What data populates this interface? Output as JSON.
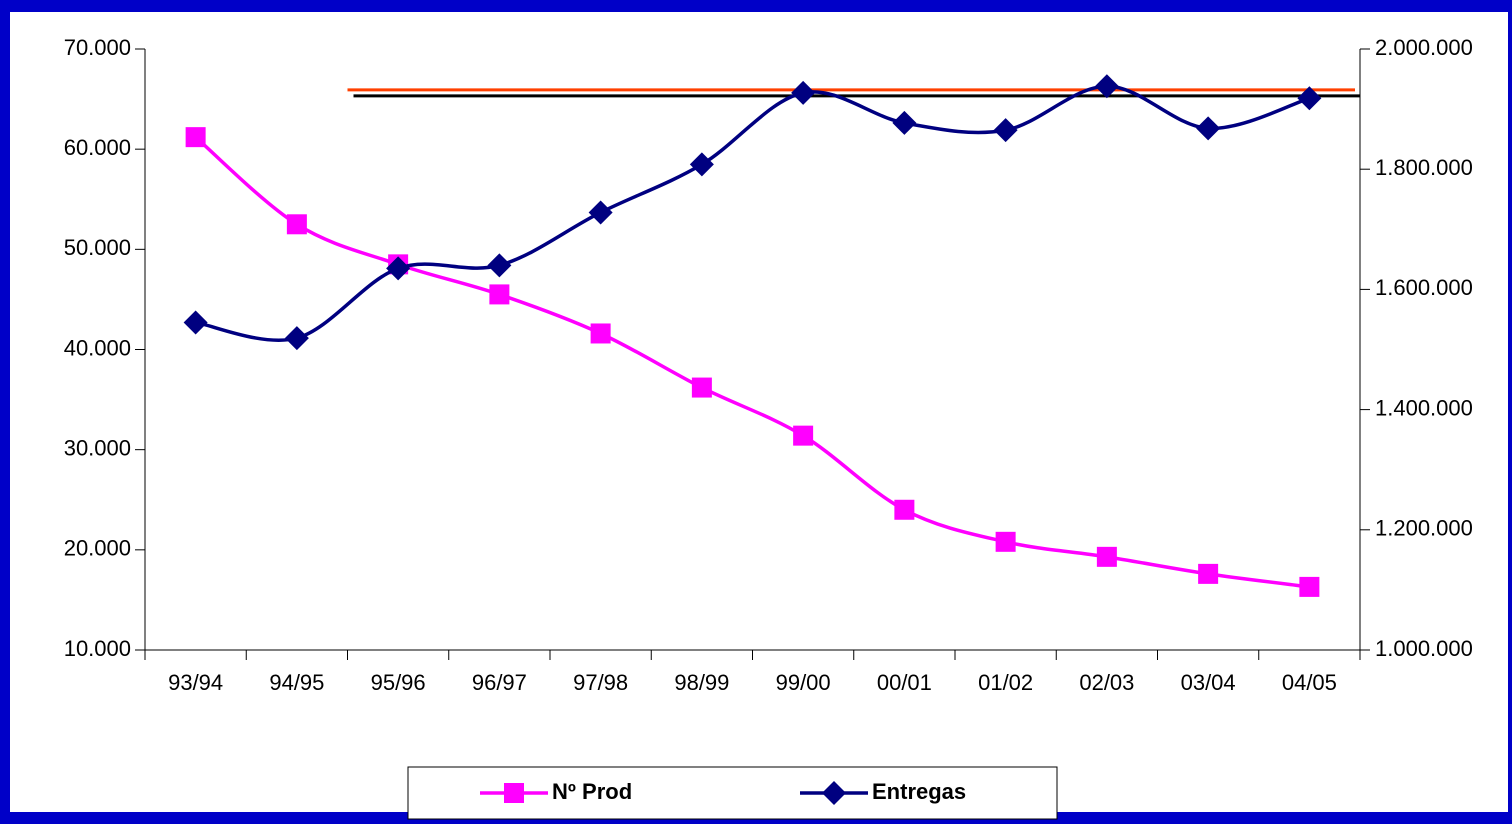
{
  "chart_data": {
    "type": "line",
    "categories": [
      "93/94",
      "94/95",
      "95/96",
      "96/97",
      "97/98",
      "98/99",
      "99/00",
      "00/01",
      "01/02",
      "02/03",
      "03/04",
      "04/05"
    ],
    "series": [
      {
        "name": "Nº Prod",
        "color": "#ff00ff",
        "marker": "square",
        "values": [
          61200,
          52500,
          48500,
          45500,
          41600,
          36200,
          31400,
          24000,
          20800,
          19300,
          17600,
          16300
        ]
      },
      {
        "name": "Entregas",
        "color": "#000080",
        "marker": "diamond",
        "axis": "y2",
        "values": [
          1545000,
          1519000,
          1635000,
          1640000,
          1728000,
          1808000,
          1927000,
          1877000,
          1865000,
          1938000,
          1868000,
          1918000
        ]
      }
    ],
    "reference_lines": [
      {
        "color": "#ff4000",
        "from": "95/96",
        "axis": "y2",
        "value": 1932000
      },
      {
        "color": "#000000",
        "from": "95/96",
        "axis": "y2",
        "value": 1922000
      }
    ],
    "ylim": [
      10000,
      70000
    ],
    "yticks": [
      {
        "value": 10000,
        "label": "10.000"
      },
      {
        "value": 20000,
        "label": "20.000"
      },
      {
        "value": 30000,
        "label": "30.000"
      },
      {
        "value": 40000,
        "label": "40.000"
      },
      {
        "value": 50000,
        "label": "50.000"
      },
      {
        "value": 60000,
        "label": "60.000"
      },
      {
        "value": 70000,
        "label": "70.000"
      }
    ],
    "y2lim": [
      1000000,
      2000000
    ],
    "y2ticks": [
      {
        "value": 1000000,
        "label": "1.000.000"
      },
      {
        "value": 1200000,
        "label": "1.200.000"
      },
      {
        "value": 1400000,
        "label": "1.400.000"
      },
      {
        "value": 1600000,
        "label": "1.600.000"
      },
      {
        "value": 1800000,
        "label": "1.800.000"
      },
      {
        "value": 2000000,
        "label": "2.000.000"
      }
    ],
    "legend": "bottom"
  }
}
